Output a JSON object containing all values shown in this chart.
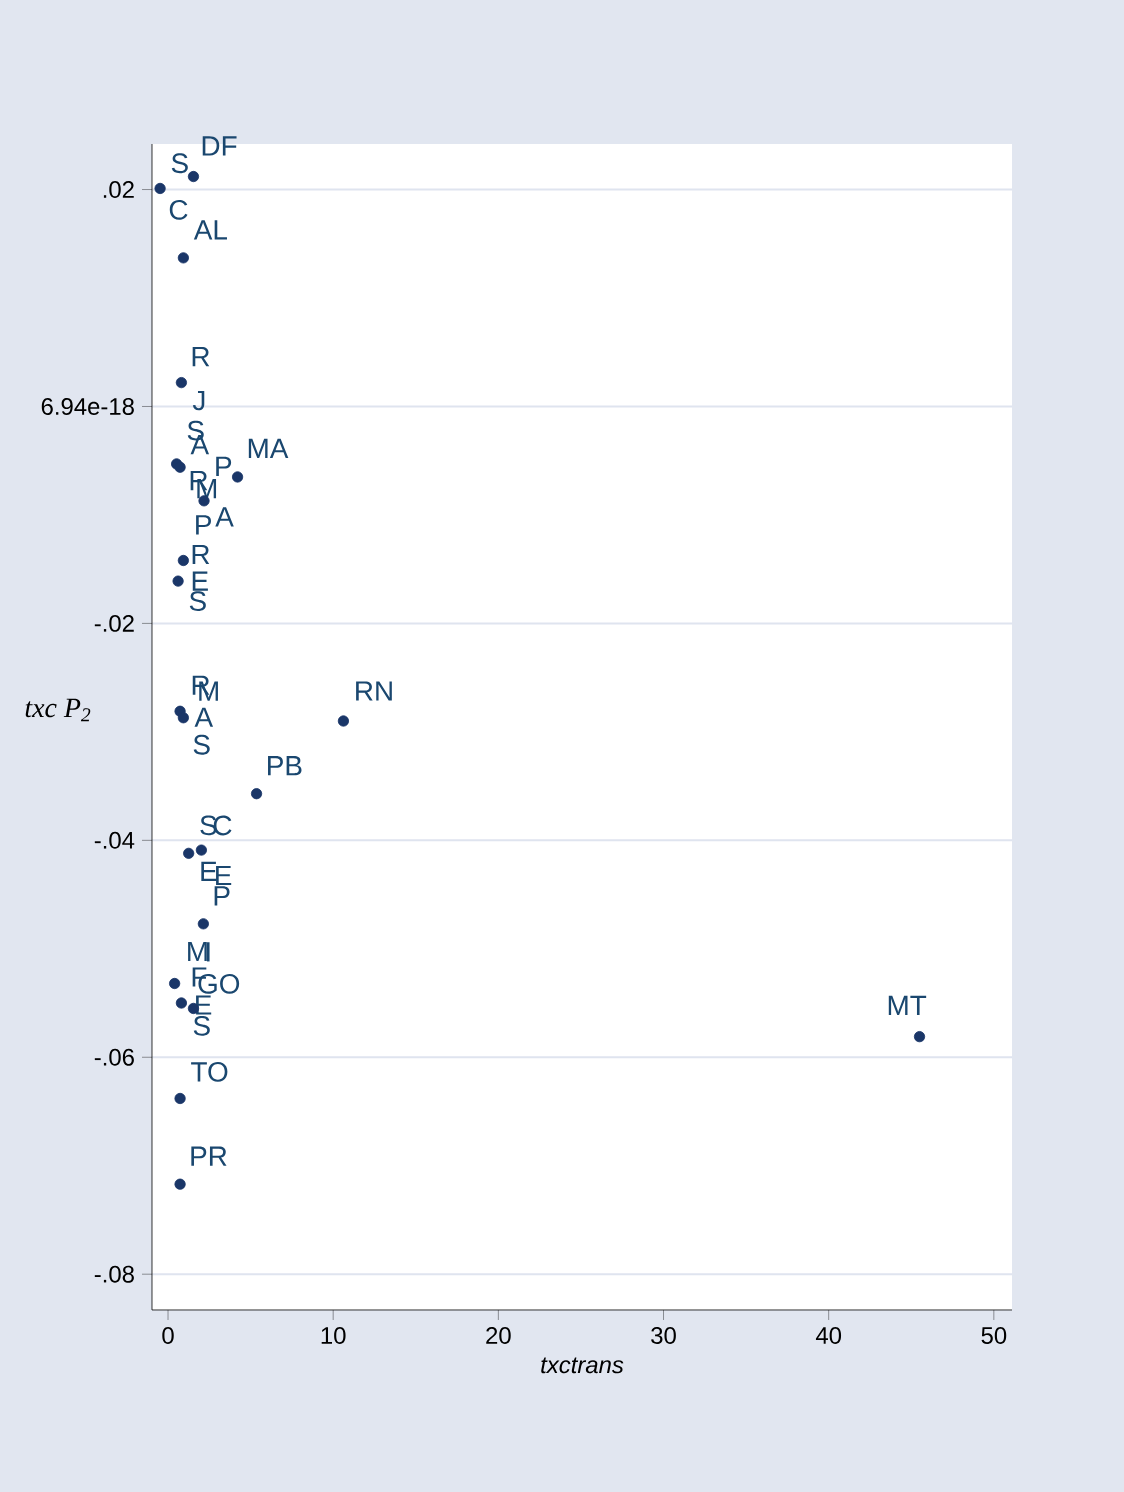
{
  "chart_data": {
    "type": "scatter",
    "xlabel": "txctrans",
    "ylabel": "txc P$_{2}$",
    "x": [
      -0.48,
      1.54,
      0.93,
      0.81,
      0.52,
      0.73,
      4.21,
      2.18,
      0.93,
      0.61,
      0.73,
      0.93,
      10.62,
      5.36,
      1.25,
      2.02,
      2.14,
      0.4,
      0.81,
      1.54,
      0.73,
      0.73,
      45.5
    ],
    "values": [
      0.0201,
      0.0212,
      0.0137,
      0.0022,
      -0.0053,
      -0.0056,
      -0.0065,
      -0.0087,
      -0.0142,
      -0.0161,
      -0.0281,
      -0.0287,
      -0.029,
      -0.0357,
      -0.0412,
      -0.0409,
      -0.0477,
      -0.0532,
      -0.055,
      -0.0555,
      -0.0638,
      -0.0717,
      -0.0581
    ],
    "color": "#1a3668",
    "marker": "circle",
    "xlim": [
      -0.97,
      51.1
    ],
    "ylim": [
      -0.0833,
      0.0242
    ],
    "xticks": [
      0,
      10,
      20,
      30,
      40,
      50
    ],
    "yticks": [
      {
        "value": 0.02,
        "label": ".02"
      },
      {
        "value": 6.94e-18,
        "label": "6.94e-18"
      },
      {
        "value": -0.02,
        "label": "-.02"
      },
      {
        "value": -0.04,
        "label": "-.04"
      },
      {
        "value": -0.06,
        "label": "-.06"
      },
      {
        "value": -0.08,
        "label": "-.08"
      }
    ],
    "grid": "y",
    "annotations": [
      {
        "text": "S",
        "x": -0.48,
        "y": 0.0201
      },
      {
        "text": "DF",
        "x": 1.54,
        "y": 0.0212
      },
      {
        "text": "C",
        "x": 0.93,
        "y": 0.0137
      },
      {
        "text": "AL",
        "x": 0.93,
        "y": 0.0137
      },
      {
        "text": "R",
        "x": 0.81,
        "y": 0.0022
      },
      {
        "text": "J",
        "x": 0.81,
        "y": 0.0022
      },
      {
        "text": "S",
        "x": 0.52,
        "y": -0.0053
      },
      {
        "text": "A",
        "x": 0.73,
        "y": -0.0056
      },
      {
        "text": "P",
        "x": 4.21,
        "y": -0.0065
      },
      {
        "text": "MA",
        "x": 4.21,
        "y": -0.0065
      },
      {
        "text": "R",
        "x": 0.52,
        "y": -0.0053
      },
      {
        "text": "M",
        "x": 0.73,
        "y": -0.0056
      },
      {
        "text": "A",
        "x": 2.18,
        "y": -0.0087
      },
      {
        "text": "P",
        "x": 2.18,
        "y": -0.0087
      },
      {
        "text": "R",
        "x": 0.93,
        "y": -0.0142
      },
      {
        "text": "E",
        "x": 0.61,
        "y": -0.0161
      },
      {
        "text": "S",
        "x": 0.61,
        "y": -0.0161
      },
      {
        "text": "R",
        "x": 0.73,
        "y": -0.0281
      },
      {
        "text": "M",
        "x": 0.93,
        "y": -0.0287
      },
      {
        "text": "A",
        "x": 0.73,
        "y": -0.0281
      },
      {
        "text": "S",
        "x": 0.93,
        "y": -0.0287
      },
      {
        "text": "RN",
        "x": 10.62,
        "y": -0.029
      },
      {
        "text": "PB",
        "x": 5.36,
        "y": -0.0357
      },
      {
        "text": "S",
        "x": 1.25,
        "y": -0.0412
      },
      {
        "text": "C",
        "x": 2.02,
        "y": -0.0409
      },
      {
        "text": "E",
        "x": 1.25,
        "y": -0.0412
      },
      {
        "text": "E",
        "x": 2.02,
        "y": -0.0409
      },
      {
        "text": "P",
        "x": 2.14,
        "y": -0.0477
      },
      {
        "text": "I",
        "x": 2.14,
        "y": -0.0477
      },
      {
        "text": "M",
        "x": 0.4,
        "y": -0.0532
      },
      {
        "text": "F",
        "x": 0.81,
        "y": -0.055
      },
      {
        "text": "GO",
        "x": 1.54,
        "y": -0.0555
      },
      {
        "text": "E",
        "x": 0.81,
        "y": -0.055
      },
      {
        "text": "S",
        "x": 1.54,
        "y": -0.0555
      },
      {
        "text": "TO",
        "x": 0.73,
        "y": -0.0638
      },
      {
        "text": "PR",
        "x": 0.73,
        "y": -0.0717
      },
      {
        "text": "MT",
        "x": 45.5,
        "y": -0.0581
      }
    ]
  }
}
